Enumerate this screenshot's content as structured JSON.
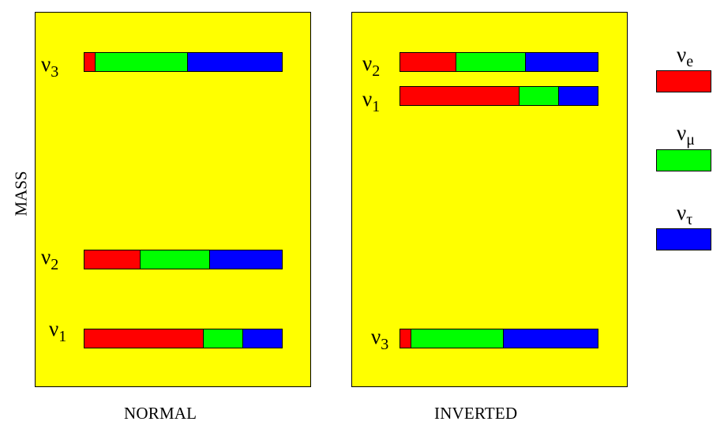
{
  "diagram": {
    "axis_label": "MASS",
    "panels": [
      {
        "label": "NORMAL",
        "states": [
          {
            "symbol": "ν",
            "index": "3",
            "fractions": {
              "e": 0.05,
              "mu": 0.47,
              "tau": 0.48
            }
          },
          {
            "symbol": "ν",
            "index": "2",
            "fractions": {
              "e": 0.28,
              "mu": 0.35,
              "tau": 0.37
            }
          },
          {
            "symbol": "ν",
            "index": "1",
            "fractions": {
              "e": 0.6,
              "mu": 0.2,
              "tau": 0.2
            }
          }
        ]
      },
      {
        "label": "INVERTED",
        "states": [
          {
            "symbol": "ν",
            "index": "2",
            "fractions": {
              "e": 0.28,
              "mu": 0.35,
              "tau": 0.37
            }
          },
          {
            "symbol": "ν",
            "index": "1",
            "fractions": {
              "e": 0.6,
              "mu": 0.2,
              "tau": 0.2
            }
          },
          {
            "symbol": "ν",
            "index": "3",
            "fractions": {
              "e": 0.05,
              "mu": 0.47,
              "tau": 0.48
            }
          }
        ]
      }
    ],
    "legend": [
      {
        "key": "e",
        "symbol": "ν",
        "subscript": "e",
        "color": "#ff0000"
      },
      {
        "key": "mu",
        "symbol": "ν",
        "subscript": "μ",
        "color": "#00ff00"
      },
      {
        "key": "tau",
        "symbol": "ν",
        "subscript": "τ",
        "color": "#0000ff"
      }
    ],
    "panel_background": "#ffff00"
  }
}
